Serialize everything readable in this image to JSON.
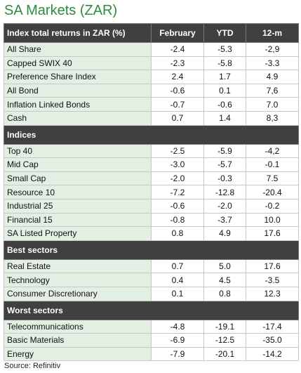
{
  "title": "SA Markets (ZAR)",
  "columns": [
    "Index total returns in ZAR (%)",
    "February",
    "YTD",
    "12-m"
  ],
  "sections": [
    {
      "name": null,
      "rows": [
        [
          "All Share",
          "-2.4",
          "-5.3",
          "-2,9"
        ],
        [
          "Capped SWIX 40",
          "-2.3",
          "-5.8",
          "-3.3"
        ],
        [
          "Preference Share Index",
          "2.4",
          "1.7",
          "4.9"
        ],
        [
          "All Bond",
          "-0.6",
          "0.1",
          "7,6"
        ],
        [
          "Inflation Linked Bonds",
          "-0.7",
          "-0.6",
          "7.0"
        ],
        [
          "Cash",
          "0.7",
          "1.4",
          "8,3"
        ]
      ]
    },
    {
      "name": "Indices",
      "rows": [
        [
          "Top 40",
          "-2.5",
          "-5.9",
          "-4,2"
        ],
        [
          "Mid Cap",
          "-3.0",
          "-5.7",
          "-0.1"
        ],
        [
          "Small Cap",
          "-2.0",
          "-0.3",
          "7.5"
        ],
        [
          "Resource 10",
          "-7.2",
          "-12.8",
          "-20.4"
        ],
        [
          "Industrial 25",
          "-0.6",
          "-2.0",
          "-0.2"
        ],
        [
          "Financial 15",
          "-0.8",
          "-3.7",
          "10.0"
        ],
        [
          "SA Listed Property",
          "0.8",
          "4.9",
          "17.6"
        ]
      ]
    },
    {
      "name": "Best sectors",
      "rows": [
        [
          "Real Estate",
          "0.7",
          "5.0",
          "17.6"
        ],
        [
          "Technology",
          "0.4",
          "4.5",
          "-3.5"
        ],
        [
          "Consumer Discretionary",
          "0.1",
          "0.8",
          "12.3"
        ]
      ]
    },
    {
      "name": "Worst sectors",
      "rows": [
        [
          "Telecommunications",
          "-4.8",
          "-19.1",
          "-17.4"
        ],
        [
          "Basic Materials",
          "-6.9",
          "-12.5",
          "-35.0"
        ],
        [
          "Energy",
          "-7.9",
          "-20.1",
          "-14.2"
        ]
      ]
    }
  ],
  "source": "Source: Refinitiv"
}
